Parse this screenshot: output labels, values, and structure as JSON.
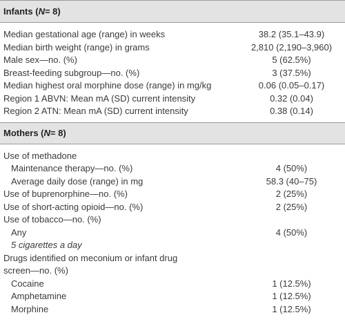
{
  "sections": [
    {
      "title": [
        "Infants (",
        "N",
        " = 8)"
      ],
      "rows": [
        [
          "Median gestational age (range) in weeks",
          "38.2 (35.1–43.9)"
        ],
        [
          "Median birth weight (range) in grams",
          "2,810 (2,190–3,960)"
        ],
        [
          "Male sex—no. (%)",
          "5 (62.5%)"
        ],
        [
          "Breast-feeding subgroup—no. (%)",
          "3 (37.5%)"
        ],
        [
          "Median highest oral morphine dose (range) in mg/kg",
          "0.06 (0.05–0.17)"
        ],
        [
          "Region 1 ABVN: Mean mA (SD) current intensity",
          "0.32 (0.04)"
        ],
        [
          "Region 2 ATN: Mean mA (SD) current intensity",
          "0.38 (0.14)"
        ]
      ]
    },
    {
      "title": [
        "Mothers (",
        "N",
        " = 8)"
      ],
      "rows": [
        [
          "Use of methadone"
        ],
        [
          "Maintenance therapy—no. (%)",
          "4 (50%)"
        ],
        [
          "Average daily dose (range) in mg",
          "58.3 (40–75)"
        ],
        [
          "Use of buprenorphine—no. (%)",
          "2 (25%)"
        ],
        [
          "Use of short-acting opioid—no. (%)",
          "2 (25%)"
        ],
        [
          "Use of tobacco—no. (%)"
        ],
        [
          "Any",
          "4 (50%)"
        ],
        [
          "5 cigarettes a day"
        ],
        [
          "Drugs identified on meconium or infant drug screen—no. (%)"
        ],
        [
          "Cocaine",
          "1 (12.5%)"
        ],
        [
          "Amphetamine",
          "1 (12.5%)"
        ],
        [
          "Morphine",
          "1 (12.5%)"
        ]
      ]
    }
  ]
}
